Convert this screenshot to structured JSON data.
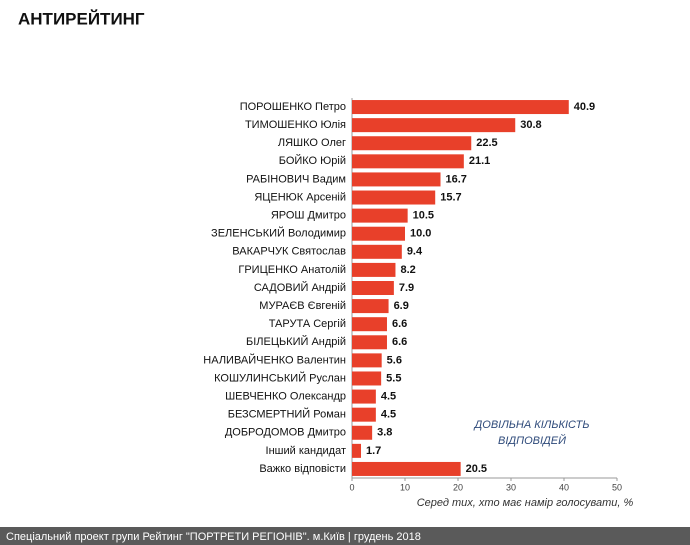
{
  "chart_data": {
    "type": "hbar",
    "title": "АНТИРЕЙТИНГ",
    "categories": [
      "ПОРОШЕНКО Петро",
      "ТИМОШЕНКО Юлія",
      "ЛЯШКО Олег",
      "БОЙКО Юрій",
      "РАБІНОВИЧ Вадим",
      "ЯЦЕНЮК Арсеній",
      "ЯРОШ Дмитро",
      "ЗЕЛЕНСЬКИЙ Володимир",
      "ВАКАРЧУК Святослав",
      "ГРИЦЕНКО Анатолій",
      "САДОВИЙ Андрій",
      "МУРАЄВ Євгеній",
      "ТАРУТА Сергій",
      "БІЛЕЦЬКИЙ Андрій",
      "НАЛИВАЙЧЕНКО Валентин",
      "КОШУЛИНСЬКИЙ Руслан",
      "ШЕВЧЕНКО Олександр",
      "БЕЗСМЕРТНИЙ Роман",
      "ДОБРОДОМОВ Дмитро",
      "Інший кандидат",
      "Важко відповісти"
    ],
    "values": [
      40.9,
      30.8,
      22.5,
      21.1,
      16.7,
      15.7,
      10.5,
      10.0,
      9.4,
      8.2,
      7.9,
      6.9,
      6.6,
      6.6,
      5.6,
      5.5,
      4.5,
      4.5,
      3.8,
      1.7,
      20.5
    ],
    "value_labels": [
      "40.9",
      "30.8",
      "22.5",
      "21.1",
      "16.7",
      "15.7",
      "10.5",
      "10.0",
      "9.4",
      "8.2",
      "7.9",
      "6.9",
      "6.6",
      "6.6",
      "5.6",
      "5.5",
      "4.5",
      "4.5",
      "3.8",
      "1.7",
      "20.5"
    ],
    "color": "#e8402a",
    "xlim": [
      0,
      50
    ],
    "xticks": [
      0,
      10,
      20,
      30,
      40,
      50
    ],
    "xlabel": "Серед тих, хто має намір голосувати, %",
    "annotation": [
      "ДОВІЛЬНА КІЛЬКІСТЬ",
      "ВІДПОВІДЕЙ"
    ],
    "footer": "Спеціальний проект групи Рейтинг \"ПОРТРЕТИ РЕГІОНІВ\". м.Київ | грудень 2018"
  }
}
